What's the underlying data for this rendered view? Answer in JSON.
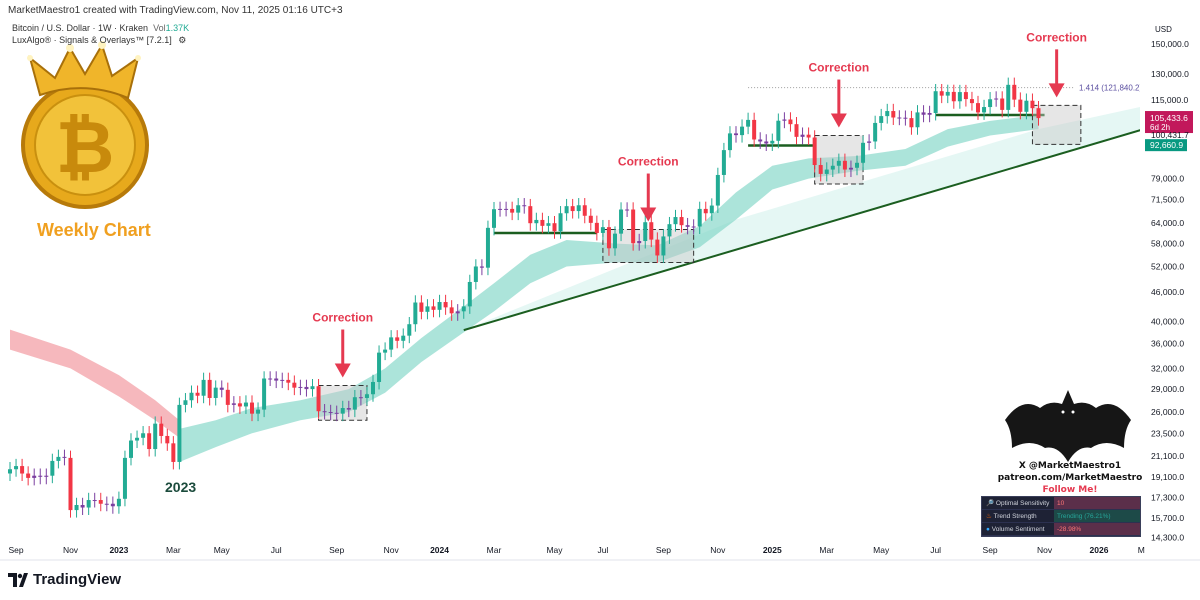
{
  "header": {
    "created": "MarketMaestro1 created with TradingView.com, Nov 11, 2025 01:16 UTC+3"
  },
  "legend": {
    "symbol": "Bitcoin / U.S. Dollar · 1W · Kraken",
    "vol_label": "Vol",
    "vol_value": "1.37K",
    "indicator": "LuxAlgo® · Signals & Overlays™ [7.2.1]",
    "indicator_icon": "settings-icon"
  },
  "branding": {
    "weekly_label": "Weekly Chart",
    "year_label": "2023",
    "footer_logo": "TradingView"
  },
  "watermark": {
    "handle": "X @MarketMaestro1",
    "patreon": "patreon.com/MarketMaestro",
    "follow": "Follow Me!"
  },
  "table": [
    {
      "label": "Optimal Sensitivity",
      "value": "10",
      "icon": "magnifier-icon",
      "color": "#5b2f4a"
    },
    {
      "label": "Trend Strength",
      "value": "Trending (76.21%)",
      "icon": "fire-icon",
      "color": "#1d4a48"
    },
    {
      "label": "Volume Sentiment",
      "value": "-28.98%",
      "icon": "droplet-icon",
      "color": "#5b2f4a"
    }
  ],
  "price_labels": {
    "last": "105,433.6",
    "countdown": "6d 2h",
    "mid": "100,431.7",
    "band": "92,660.9",
    "fib": "1.414 (121,840.2)"
  },
  "colors": {
    "up": "#22ab94",
    "down": "#f23645",
    "neutral": "#7b3fa0",
    "band": "#7fd6c6",
    "bear_band": "#f4a6ad",
    "trend": "#1b5e20",
    "accent": "#e53950"
  },
  "chart_data": {
    "type": "candlestick",
    "title": "Bitcoin / U.S. Dollar · 1W · Kraken",
    "ylabel": "USD",
    "yscale": "log",
    "ylim": [
      14300,
      150000
    ],
    "start_week": "Sep 2022",
    "closes_k": [
      19.8,
      20.1,
      19.4,
      19.0,
      19.2,
      19.1,
      19.2,
      20.6,
      21.0,
      20.9,
      16.3,
      16.7,
      16.5,
      17.1,
      17.1,
      16.8,
      16.8,
      16.6,
      17.2,
      20.9,
      22.7,
      23.0,
      23.5,
      21.8,
      24.6,
      23.2,
      22.4,
      20.5,
      26.9,
      27.5,
      28.5,
      28.1,
      30.3,
      27.8,
      29.2,
      28.9,
      26.9,
      27.1,
      26.7,
      27.2,
      25.8,
      26.3,
      30.5,
      30.5,
      30.2,
      30.3,
      29.9,
      29.2,
      29.3,
      29.0,
      29.4,
      26.1,
      26.0,
      25.9,
      25.8,
      26.5,
      26.3,
      27.9,
      27.8,
      28.3,
      30.0,
      34.5,
      35.0,
      37.1,
      36.5,
      37.4,
      39.5,
      43.8,
      41.9,
      43.0,
      42.3,
      43.9,
      42.8,
      41.6,
      42.0,
      43.0,
      48.3,
      52.0,
      51.7,
      62.5,
      68.3,
      68.4,
      68.4,
      67.2,
      69.6,
      69.3,
      63.9,
      64.9,
      63.1,
      63.9,
      61.5,
      67.0,
      69.3,
      67.7,
      69.6,
      66.2,
      64.0,
      61.0,
      62.7,
      56.7,
      60.8,
      68.2,
      68.2,
      58.1,
      58.7,
      64.2,
      59.1,
      54.8,
      60.0,
      63.6,
      65.8,
      63.3,
      62.8,
      62.9,
      68.4,
      67.0,
      69.5,
      80.4,
      90.5,
      98.0,
      97.2,
      101.2,
      104.5,
      95.2,
      94.3,
      93.4,
      94.6,
      104.1,
      104.7,
      102.4,
      96.4,
      97.4,
      96.1,
      84.3,
      80.8,
      82.5,
      84.0,
      86.0,
      82.5,
      83.2,
      85.2,
      93.7,
      94.3,
      103.0,
      106.4,
      109.0,
      105.7,
      105.6,
      105.4,
      100.9,
      108.3,
      107.1,
      108.0,
      119.8,
      117.3,
      119.4,
      114.2,
      119.3,
      115.4,
      113.2,
      108.3,
      111.1,
      115.3,
      115.7,
      109.6,
      123.5,
      115.1,
      108.6,
      114.5,
      110.5,
      105.4
    ],
    "y_ticks": [
      150000,
      130000,
      115000,
      79000,
      71500,
      64000,
      58000,
      52000,
      46000,
      40000,
      36000,
      32000,
      29000,
      26000,
      23500,
      21100,
      19100,
      17300,
      15700,
      14300
    ],
    "x_ticks": [
      {
        "label": "Sep",
        "week": 1
      },
      {
        "label": "Nov",
        "week": 10
      },
      {
        "label": "2023",
        "week": 18
      },
      {
        "label": "Mar",
        "week": 27
      },
      {
        "label": "May",
        "week": 35
      },
      {
        "label": "Jul",
        "week": 44
      },
      {
        "label": "Sep",
        "week": 54
      },
      {
        "label": "Nov",
        "week": 63
      },
      {
        "label": "2024",
        "week": 71
      },
      {
        "label": "Mar",
        "week": 80
      },
      {
        "label": "May",
        "week": 90
      },
      {
        "label": "Jul",
        "week": 98
      },
      {
        "label": "Sep",
        "week": 108
      },
      {
        "label": "Nov",
        "week": 117
      },
      {
        "label": "2025",
        "week": 126
      },
      {
        "label": "Mar",
        "week": 135
      },
      {
        "label": "May",
        "week": 144
      },
      {
        "label": "Jul",
        "week": 153
      },
      {
        "label": "Sep",
        "week": 162
      },
      {
        "label": "Nov",
        "week": 171
      },
      {
        "label": "2026",
        "week": 180
      },
      {
        "label": "M",
        "week": 187
      }
    ],
    "trend_band_k": [
      [
        28,
        20.5,
        24
      ],
      [
        34,
        22,
        25
      ],
      [
        40,
        23.5,
        26.5
      ],
      [
        48,
        25,
        27.5
      ],
      [
        56,
        26,
        29
      ],
      [
        62,
        28.5,
        32
      ],
      [
        68,
        33,
        37
      ],
      [
        75,
        38,
        43
      ],
      [
        80,
        42,
        48
      ],
      [
        86,
        48,
        55
      ],
      [
        92,
        52,
        59
      ],
      [
        100,
        53,
        58
      ],
      [
        107,
        53,
        57.5
      ],
      [
        114,
        57,
        63
      ],
      [
        120,
        65,
        74
      ],
      [
        126,
        75,
        84
      ],
      [
        132,
        79,
        87
      ],
      [
        140,
        82,
        88
      ],
      [
        148,
        84,
        91
      ],
      [
        155,
        92,
        100
      ],
      [
        162,
        97,
        104
      ],
      [
        170,
        100,
        107
      ]
    ],
    "bear_band_k": [
      [
        0,
        35,
        38.5
      ],
      [
        10,
        32,
        35
      ],
      [
        18,
        28,
        31
      ],
      [
        24,
        25,
        27.5
      ],
      [
        28,
        23,
        25
      ]
    ],
    "trendline_k": [
      [
        75,
        38.4
      ],
      [
        188,
        100.5
      ]
    ],
    "fib_level": 121840.2,
    "support_lines_k": [
      [
        80,
        97,
        61
      ],
      [
        122,
        133,
        92.5
      ],
      [
        153,
        171,
        107
      ]
    ],
    "corrections": [
      {
        "label": "Correction",
        "w0": 51,
        "w1": 59,
        "lo": 25,
        "hi": 29.5
      },
      {
        "label": "Correction",
        "w0": 98,
        "w1": 113,
        "lo": 53,
        "hi": 62
      },
      {
        "label": "Correction",
        "w0": 133,
        "w1": 141,
        "lo": 77,
        "hi": 97
      },
      {
        "label": "Correction",
        "w0": 169,
        "w1": 177,
        "lo": 93,
        "hi": 112
      }
    ]
  }
}
